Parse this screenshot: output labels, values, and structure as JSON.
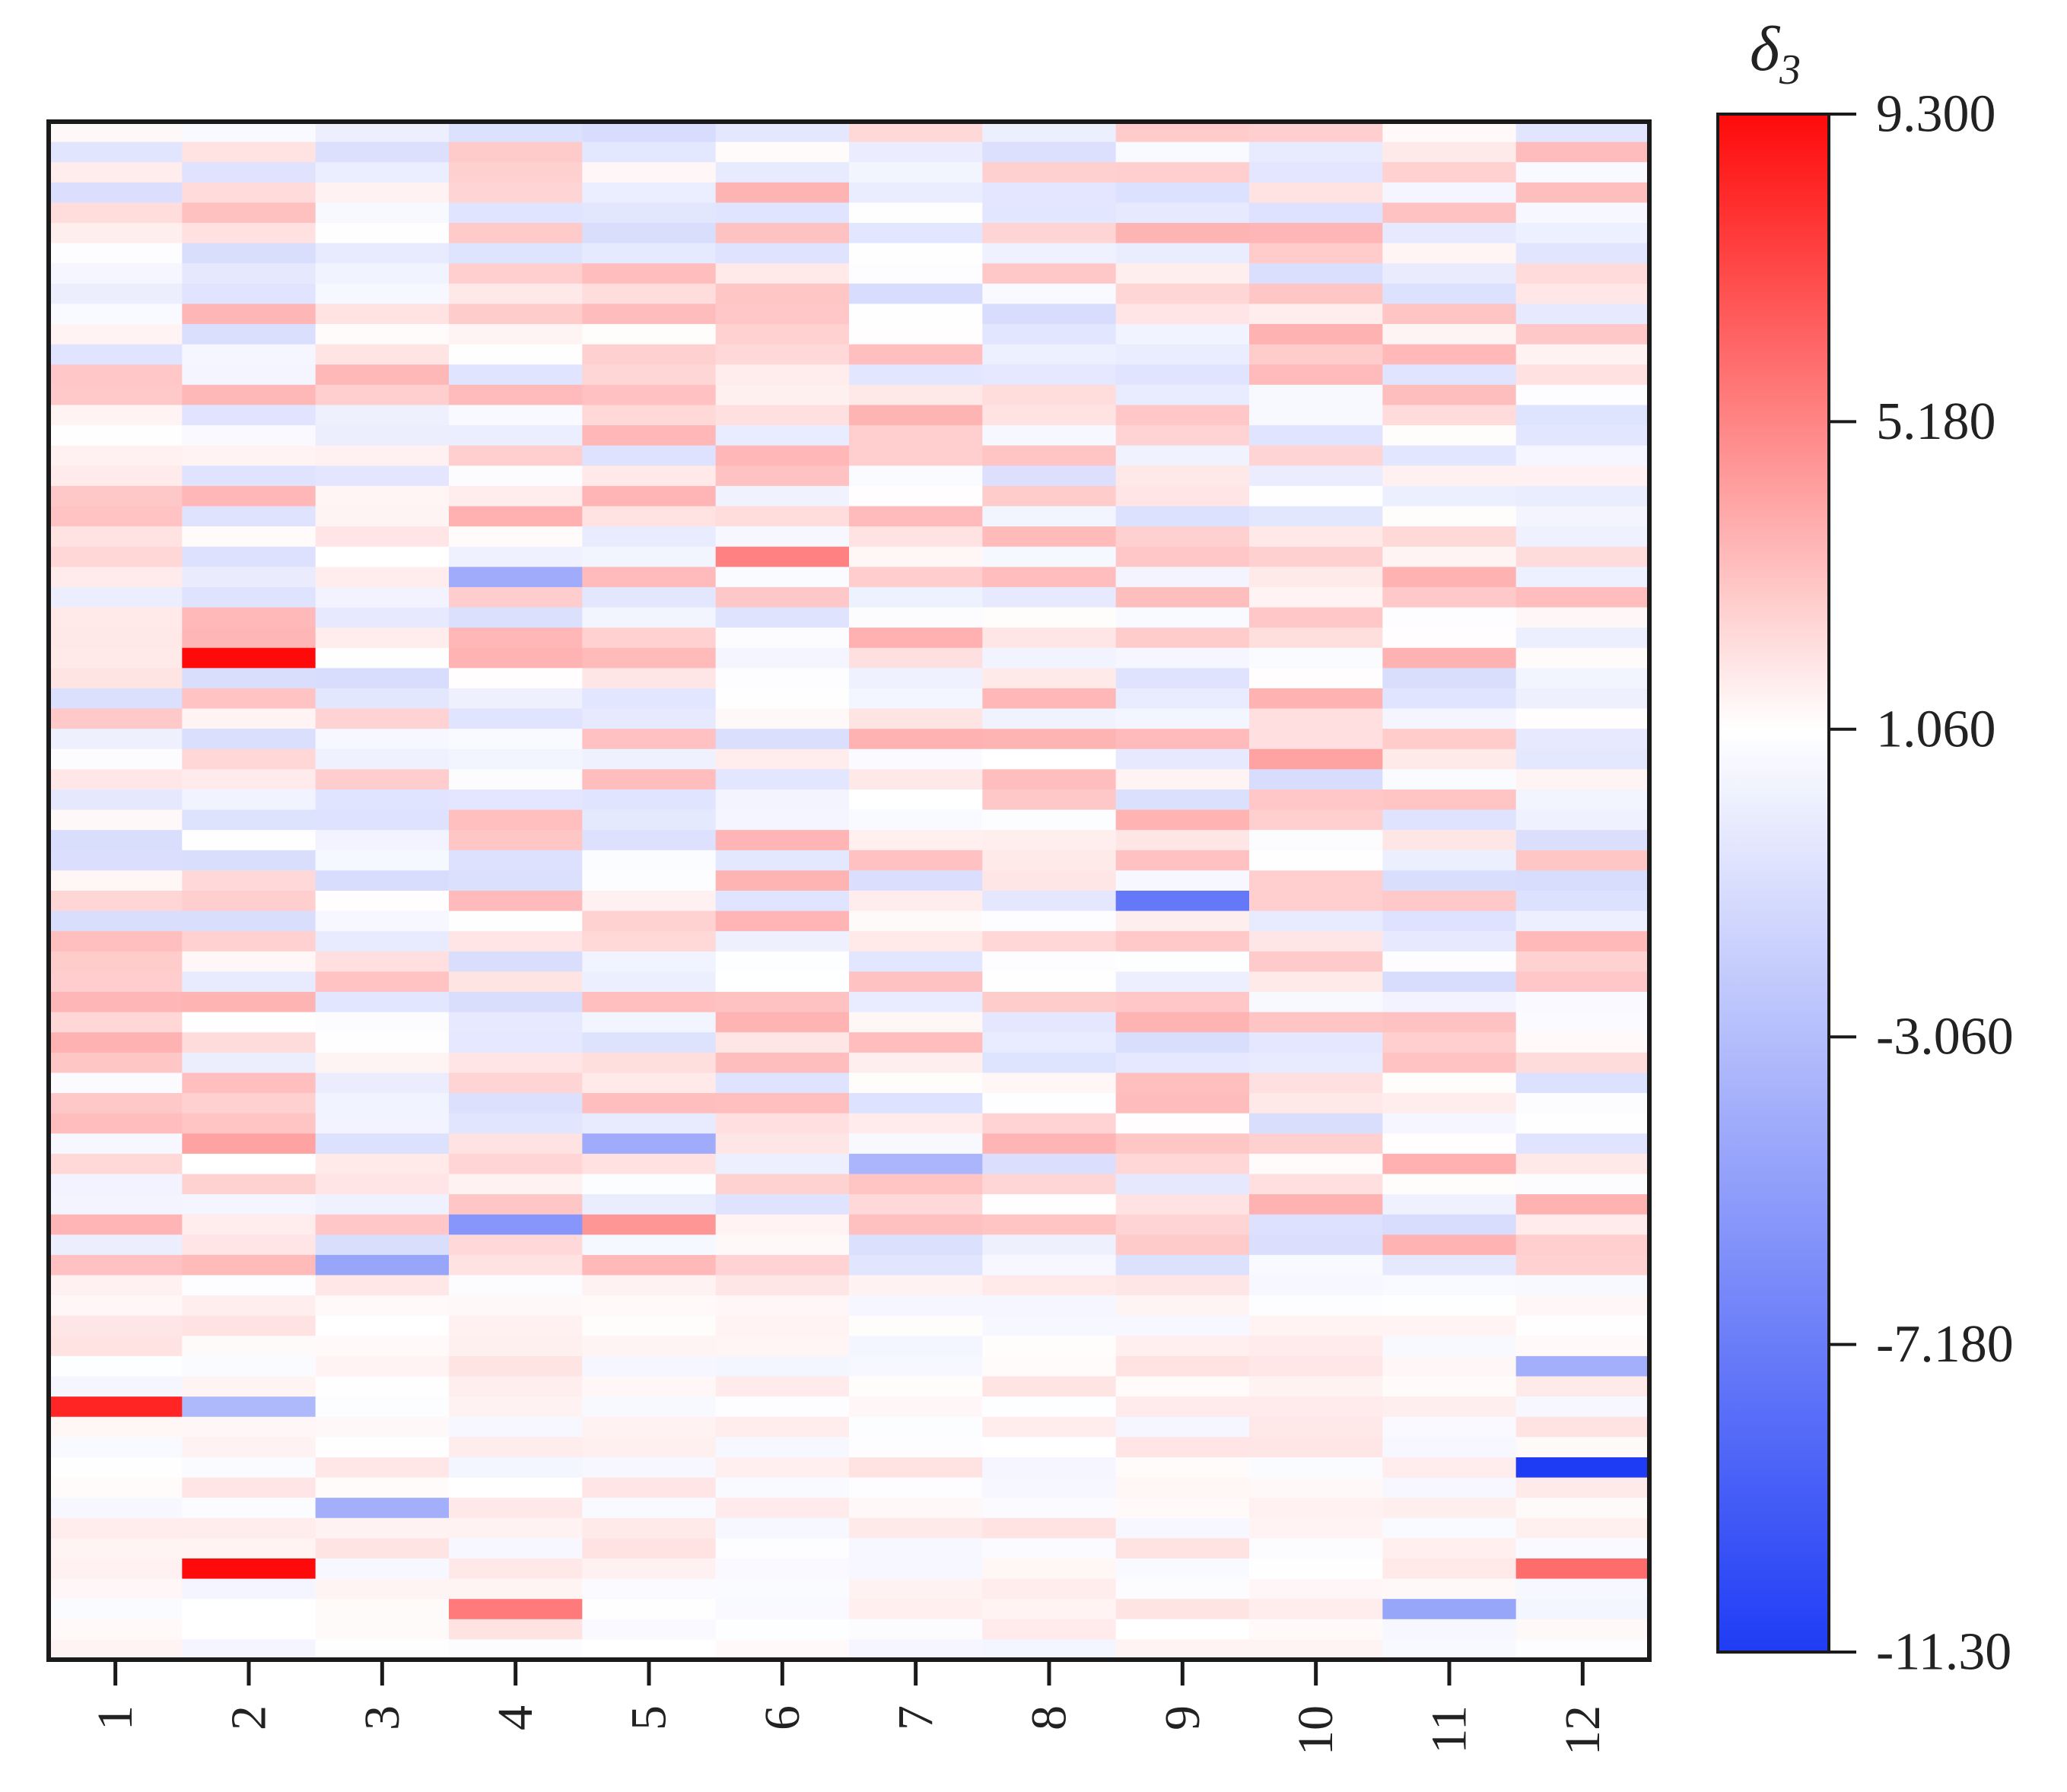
{
  "chart_data": {
    "type": "heatmap",
    "title": "",
    "xlabel": "",
    "ylabel": "",
    "x_categories": [
      "1",
      "2",
      "3",
      "4",
      "5",
      "6",
      "7",
      "8",
      "9",
      "10",
      "11",
      "12"
    ],
    "n_rows": 76,
    "colorbar": {
      "title": "δ",
      "title_subscript": "3",
      "min": -11.3,
      "max": 9.3,
      "center": 1.06,
      "ticks": [
        9.3,
        5.18,
        1.06,
        -3.06,
        -7.18,
        -11.3
      ],
      "tick_labels": [
        "9.300",
        "5.180",
        "1.060",
        "-3.060",
        "-7.180",
        "-11.30"
      ],
      "colors": {
        "low": "#1f3cf5",
        "mid": "#ffffff",
        "high": "#ff0a0a"
      }
    },
    "background_value": 1.2,
    "notable_cells": [
      {
        "col": 2,
        "row": 27,
        "value": 9.3
      },
      {
        "col": 2,
        "row": 72,
        "value": 9.3
      },
      {
        "col": 1,
        "row": 64,
        "value": 8.4
      },
      {
        "col": 12,
        "row": 67,
        "value": -11.3
      },
      {
        "col": 9,
        "row": 39,
        "value": -7.5
      },
      {
        "col": 12,
        "row": 72,
        "value": 6.0
      },
      {
        "col": 4,
        "row": 74,
        "value": 5.5
      },
      {
        "col": 6,
        "row": 22,
        "value": 5.3
      },
      {
        "col": 10,
        "row": 32,
        "value": 4.2
      },
      {
        "col": 2,
        "row": 51,
        "value": 4.2
      },
      {
        "col": 5,
        "row": 55,
        "value": 4.6
      },
      {
        "col": 4,
        "row": 55,
        "value": -5.6
      },
      {
        "col": 3,
        "row": 57,
        "value": -4.6
      },
      {
        "col": 4,
        "row": 23,
        "value": -4.2
      },
      {
        "col": 2,
        "row": 64,
        "value": -3.4
      },
      {
        "col": 12,
        "row": 62,
        "value": -4.0
      },
      {
        "col": 11,
        "row": 74,
        "value": -4.6
      },
      {
        "col": 3,
        "row": 69,
        "value": -4.0
      },
      {
        "col": 5,
        "row": 51,
        "value": -4.2
      },
      {
        "col": 7,
        "row": 52,
        "value": -3.6
      }
    ]
  }
}
